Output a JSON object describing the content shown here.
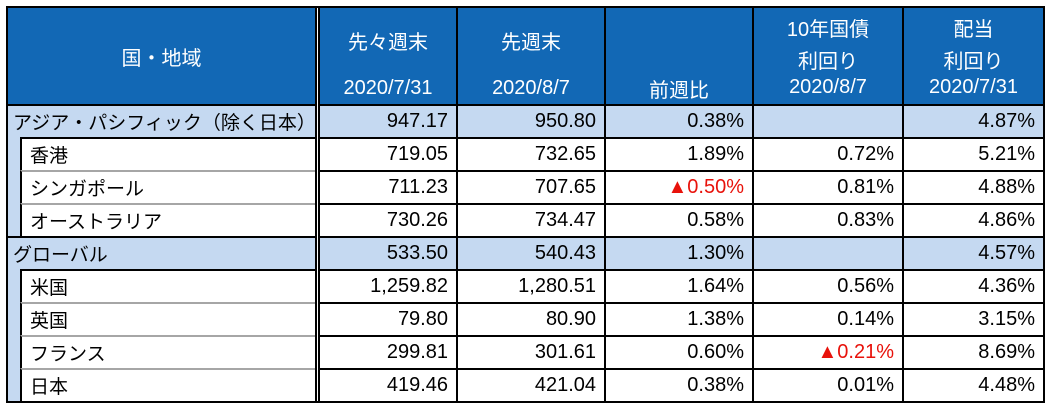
{
  "chart_data": {
    "type": "table",
    "header": {
      "region": "国・地域",
      "prev": {
        "label": "先々週末",
        "date": "2020/7/31"
      },
      "last": {
        "label": "先週末",
        "date": "2020/8/7"
      },
      "wow": {
        "label": "前週比"
      },
      "bond": {
        "line1": "10年国債",
        "line2": "利回り",
        "date": "2020/8/7"
      },
      "div": {
        "line1": "配当",
        "line2": "利回り",
        "date": "2020/7/31"
      }
    },
    "rows": [
      {
        "type": "region",
        "name": "アジア・パシフィック（除く日本）",
        "prev": "947.17",
        "last": "950.80",
        "wow": "0.38%",
        "bond": "",
        "div": "4.87%"
      },
      {
        "type": "country",
        "name": "香港",
        "prev": "719.05",
        "last": "732.65",
        "wow": "1.89%",
        "bond": "0.72%",
        "div": "5.21%"
      },
      {
        "type": "country",
        "name": "シンガポール",
        "prev": "711.23",
        "last": "707.65",
        "wow": "▲0.50%",
        "wow_negative": true,
        "bond": "0.81%",
        "div": "4.88%"
      },
      {
        "type": "country",
        "name": "オーストラリア",
        "prev": "730.26",
        "last": "734.47",
        "wow": "0.58%",
        "bond": "0.83%",
        "div": "4.86%"
      },
      {
        "type": "region",
        "name": "グローバル",
        "prev": "533.50",
        "last": "540.43",
        "wow": "1.30%",
        "bond": "",
        "div": "4.57%"
      },
      {
        "type": "country",
        "name": "米国",
        "prev": "1,259.82",
        "last": "1,280.51",
        "wow": "1.64%",
        "bond": "0.56%",
        "div": "4.36%"
      },
      {
        "type": "country",
        "name": "英国",
        "prev": "79.80",
        "last": "80.90",
        "wow": "1.38%",
        "bond": "0.14%",
        "div": "3.15%"
      },
      {
        "type": "country",
        "name": "フランス",
        "prev": "299.81",
        "last": "301.61",
        "wow": "0.60%",
        "bond": "▲0.21%",
        "bond_negative": true,
        "div": "8.69%"
      },
      {
        "type": "country",
        "name": "日本",
        "prev": "419.46",
        "last": "421.04",
        "wow": "0.38%",
        "bond": "0.01%",
        "div": "4.48%"
      }
    ],
    "colors": {
      "header_bg": "#1268b5",
      "header_text": "#ffffff",
      "region_row_bg": "#c5d9f1",
      "negative_text": "#e8120b",
      "grid_line": "#000000",
      "sub_separator": "#a6a6a6"
    }
  }
}
